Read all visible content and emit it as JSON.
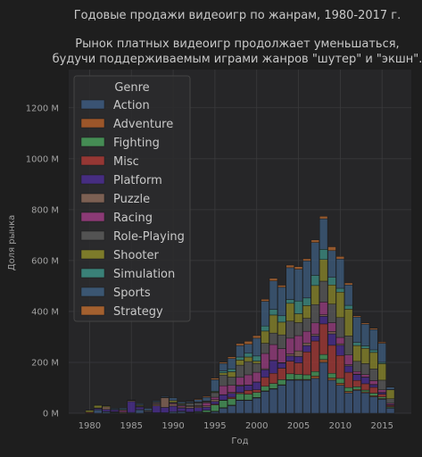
{
  "chart_data": {
    "type": "bar",
    "stacked": true,
    "title": "Годовые продажи видеоигр по жанрам, 1980-2017 г.",
    "subtitle_lines": [
      "Рынок платных видеоигр продолжает уменьшаться,",
      "будучи поддерживаемым играми жанров \"шутер\" и \"экшн\"."
    ],
    "xlabel": "Год",
    "ylabel": "Доля рынка",
    "xlim": [
      1977.5,
      2018.5
    ],
    "ylim": [
      0,
      1350
    ],
    "xticks": [
      1980,
      1985,
      1990,
      1995,
      2000,
      2005,
      2010,
      2015
    ],
    "yticks": [
      0,
      200,
      400,
      600,
      800,
      1000,
      1200
    ],
    "ytick_labels": [
      "0 M",
      "200 M",
      "400 M",
      "600 M",
      "800 M",
      "1000 M",
      "1200 M"
    ],
    "grid": true,
    "legend": {
      "title": "Genre",
      "placement": "top-left"
    },
    "x": [
      1980,
      1981,
      1982,
      1983,
      1984,
      1985,
      1986,
      1987,
      1988,
      1989,
      1990,
      1991,
      1992,
      1993,
      1994,
      1995,
      1996,
      1997,
      1998,
      1999,
      2000,
      2001,
      2002,
      2003,
      2004,
      2005,
      2006,
      2007,
      2008,
      2009,
      2010,
      2011,
      2012,
      2013,
      2014,
      2015,
      2016
    ],
    "series": [
      {
        "name": "Action",
        "color": "#3d5a80",
        "values": [
          0.3,
          14,
          6,
          3,
          1,
          3,
          14,
          2,
          2,
          1,
          6,
          7,
          2,
          3,
          2,
          6,
          20,
          30,
          50,
          50,
          60,
          86,
          95,
          110,
          130,
          130,
          130,
          137,
          200,
          130,
          110,
          80,
          90,
          80,
          65,
          55,
          20
        ]
      },
      {
        "name": "Adventure",
        "color": "#b05e2a",
        "values": [
          0.1,
          0.1,
          0.1,
          0.2,
          0.2,
          0.1,
          0.5,
          0.2,
          0.1,
          1,
          0.2,
          0.3,
          1,
          1,
          2,
          2,
          2,
          2,
          2,
          2,
          2,
          2,
          2,
          2,
          2,
          3,
          3,
          9,
          11,
          9,
          8,
          6,
          4,
          4,
          4,
          3,
          2
        ]
      },
      {
        "name": "Fighting",
        "color": "#4a9e5c",
        "values": [
          1,
          0,
          0,
          1,
          0,
          0,
          0,
          0,
          0,
          0,
          0,
          0,
          2,
          3,
          8,
          25,
          28,
          25,
          25,
          23,
          20,
          18,
          20,
          20,
          23,
          20,
          18,
          18,
          20,
          18,
          19,
          15,
          10,
          7,
          10,
          6,
          4
        ]
      },
      {
        "name": "Misc",
        "color": "#a83a36",
        "values": [
          3,
          0,
          1,
          2,
          0,
          0,
          0,
          0,
          0,
          0,
          0,
          1,
          0,
          0,
          0,
          3,
          2,
          6,
          5,
          15,
          10,
          35,
          40,
          45,
          50,
          45,
          90,
          120,
          120,
          110,
          90,
          60,
          25,
          25,
          23,
          11,
          5
        ]
      },
      {
        "name": "Platform",
        "color": "#4b2e91",
        "values": [
          0,
          5,
          8,
          7,
          0,
          43,
          10,
          3,
          27,
          21,
          22,
          12,
          15,
          15,
          12,
          10,
          20,
          15,
          25,
          20,
          30,
          30,
          50,
          20,
          20,
          25,
          25,
          20,
          30,
          45,
          40,
          25,
          23,
          25,
          10,
          6,
          3
        ]
      },
      {
        "name": "Puzzle",
        "color": "#8b6a5a",
        "values": [
          0,
          2,
          10,
          1,
          4,
          4,
          0,
          0,
          6,
          38,
          8,
          4,
          7,
          5,
          5,
          8,
          1,
          4,
          4,
          1,
          1,
          4,
          1,
          2,
          8,
          22,
          10,
          6,
          6,
          9,
          6,
          5,
          2,
          1,
          1,
          1,
          0
        ]
      },
      {
        "name": "Racing",
        "color": "#9c3d82",
        "values": [
          0,
          0,
          0,
          0,
          6,
          0,
          2,
          0,
          3,
          0,
          4,
          5,
          2,
          3,
          12,
          9,
          35,
          28,
          30,
          40,
          38,
          60,
          62,
          55,
          62,
          60,
          46,
          45,
          50,
          35,
          25,
          38,
          10,
          10,
          15,
          10,
          5
        ]
      },
      {
        "name": "Role-Playing",
        "color": "#5b5b5b",
        "values": [
          0,
          0,
          0,
          0,
          0,
          0,
          3,
          5,
          6,
          2,
          3,
          5,
          11,
          11,
          4,
          18,
          42,
          32,
          48,
          52,
          35,
          40,
          45,
          54,
          67,
          51,
          51,
          72,
          82,
          73,
          78,
          75,
          40,
          43,
          46,
          38,
          18
        ]
      },
      {
        "name": "Shooter",
        "color": "#8c8a2a",
        "values": [
          7,
          10,
          4,
          1,
          3,
          1,
          3,
          1,
          1,
          1,
          7,
          3,
          1,
          2,
          2,
          3,
          9,
          21,
          20,
          18,
          9,
          48,
          71,
          50,
          70,
          35,
          50,
          75,
          85,
          75,
          100,
          105,
          62,
          60,
          65,
          65,
          35
        ]
      },
      {
        "name": "Simulation",
        "color": "#3d9186",
        "values": [
          0,
          0,
          0,
          0,
          0,
          0,
          0,
          0,
          0,
          0,
          0,
          1,
          1,
          1,
          1,
          3,
          7,
          11,
          12,
          15,
          20,
          20,
          22,
          25,
          15,
          50,
          30,
          40,
          40,
          30,
          15,
          15,
          12,
          10,
          10,
          5,
          1
        ]
      },
      {
        "name": "Sports",
        "color": "#3e5e7f",
        "values": [
          0,
          1,
          1,
          4,
          6,
          1,
          5,
          8,
          4,
          4,
          10,
          7,
          5,
          10,
          15,
          45,
          30,
          41,
          45,
          35,
          70,
          97,
          112,
          112,
          125,
          125,
          146,
          129,
          120,
          105,
          115,
          80,
          100,
          85,
          80,
          75,
          10
        ]
      },
      {
        "name": "Strategy",
        "color": "#b86a30",
        "values": [
          0,
          0,
          0,
          0,
          0,
          0,
          0,
          0,
          0,
          0,
          0,
          1,
          2,
          3,
          4,
          6,
          5,
          7,
          8,
          12,
          10,
          8,
          10,
          8,
          10,
          10,
          8,
          10,
          10,
          15,
          10,
          8,
          5,
          5,
          5,
          5,
          1
        ]
      }
    ]
  }
}
